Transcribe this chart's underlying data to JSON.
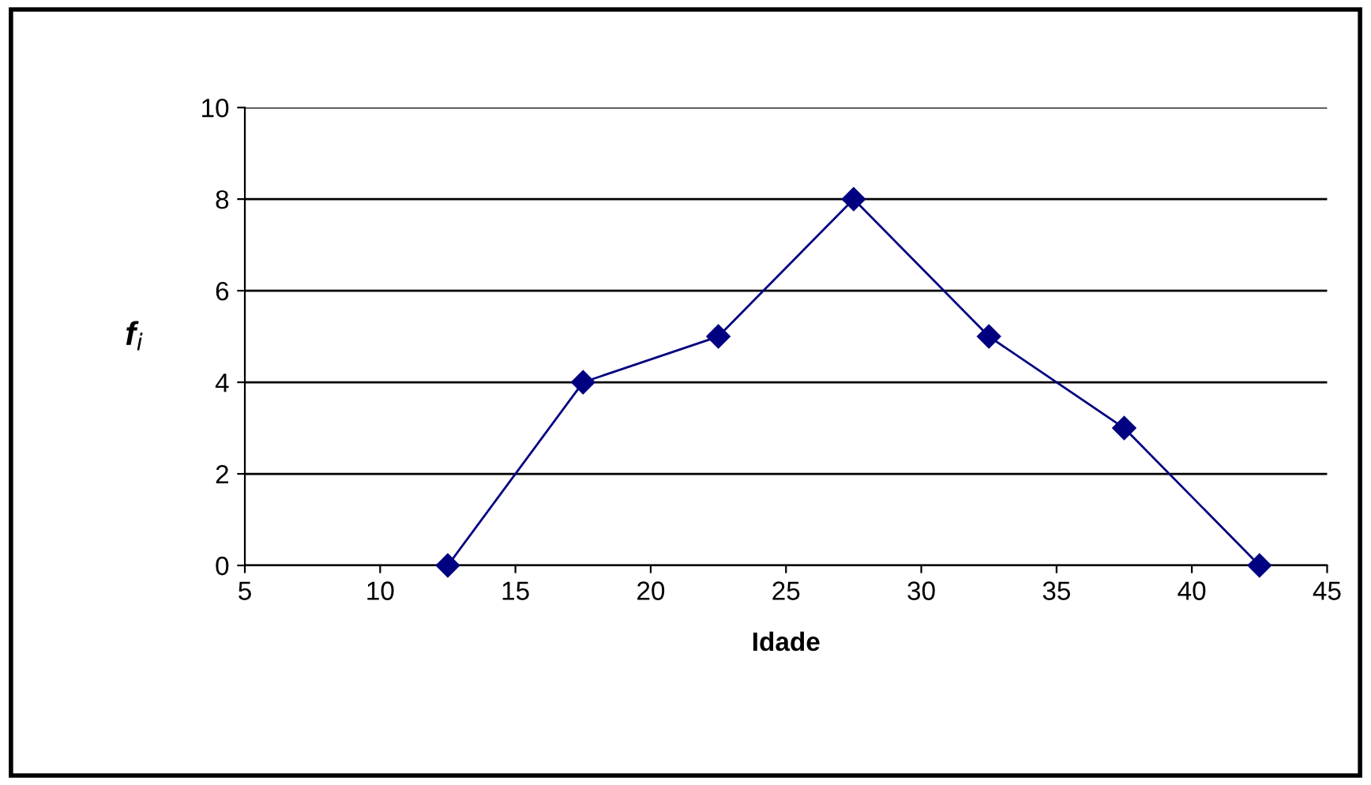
{
  "chart_data": {
    "type": "line",
    "xlabel": "Idade",
    "ylabel": "f$_{i}$",
    "x": [
      12.5,
      17.5,
      22.5,
      27.5,
      32.5,
      37.5,
      42.5
    ],
    "series": [
      {
        "color": "#000080",
        "values": [
          0,
          4,
          5,
          8,
          5,
          3,
          0
        ]
      }
    ],
    "xlim": [
      5,
      45
    ],
    "xticks": [
      5,
      10,
      15,
      20,
      25,
      30,
      35,
      40,
      45
    ],
    "ylim": [
      0,
      10
    ],
    "yticks": [
      0,
      2,
      4,
      6,
      8,
      10
    ],
    "grid": "y",
    "marker": "diamond",
    "line_style": "solid",
    "legend": false
  }
}
